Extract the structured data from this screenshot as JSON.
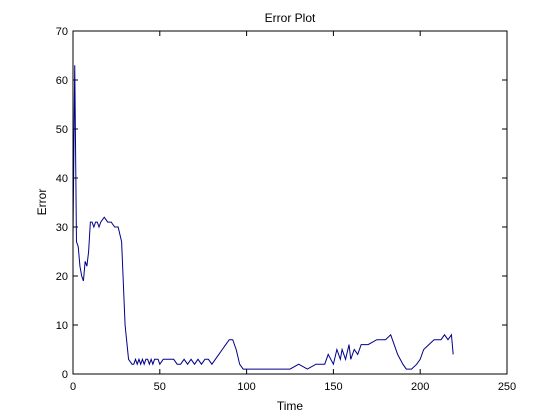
{
  "chart_data": {
    "type": "line",
    "title": "Error Plot",
    "xlabel": "Time",
    "ylabel": "Error",
    "xlim": [
      0,
      250
    ],
    "ylim": [
      0,
      70
    ],
    "xticks": [
      0,
      50,
      100,
      150,
      200,
      250
    ],
    "yticks": [
      0,
      10,
      20,
      30,
      40,
      50,
      60,
      70
    ],
    "grid": false,
    "series": [
      {
        "color": "#00008b",
        "x": [
          0,
          1,
          2,
          3,
          4,
          5,
          6,
          7,
          8,
          9,
          10,
          11,
          12,
          13,
          14,
          15,
          16,
          18,
          20,
          22,
          24,
          26,
          28,
          30,
          32,
          34,
          35,
          36,
          37,
          38,
          39,
          40,
          41,
          42,
          43,
          44,
          45,
          46,
          47,
          48,
          49,
          50,
          52,
          54,
          56,
          58,
          60,
          62,
          64,
          66,
          68,
          70,
          72,
          74,
          76,
          78,
          80,
          82,
          84,
          86,
          88,
          90,
          92,
          94,
          96,
          98,
          100,
          102,
          104,
          106,
          108,
          110,
          112,
          115,
          120,
          125,
          130,
          135,
          140,
          145,
          147,
          150,
          152,
          154,
          155,
          157,
          159,
          160,
          162,
          164,
          166,
          170,
          175,
          180,
          183,
          185,
          187,
          190,
          192,
          195,
          198,
          200,
          202,
          205,
          208,
          210,
          212,
          214,
          216,
          218,
          219
        ],
        "y": [
          28,
          63,
          27,
          26,
          22,
          20,
          19,
          23,
          22,
          25,
          31,
          31,
          30,
          31,
          31,
          30,
          31,
          32,
          31,
          31,
          30,
          30,
          27,
          10,
          3,
          2,
          2,
          3,
          2,
          3,
          2,
          3,
          2,
          3,
          3,
          2,
          3,
          2,
          3,
          3,
          3,
          2,
          3,
          3,
          3,
          3,
          2,
          2,
          3,
          2,
          3,
          2,
          3,
          2,
          3,
          3,
          2,
          3,
          4,
          5,
          6,
          7,
          7,
          5,
          2,
          1,
          1,
          1,
          1,
          1,
          1,
          1,
          1,
          1,
          1,
          1,
          2,
          1,
          2,
          2,
          4,
          2,
          5,
          3,
          5,
          3,
          6,
          3,
          5,
          4,
          6,
          6,
          7,
          7,
          8,
          6,
          4,
          2,
          1,
          1,
          2,
          3,
          5,
          6,
          7,
          7,
          7,
          8,
          7,
          8,
          4
        ]
      }
    ]
  }
}
